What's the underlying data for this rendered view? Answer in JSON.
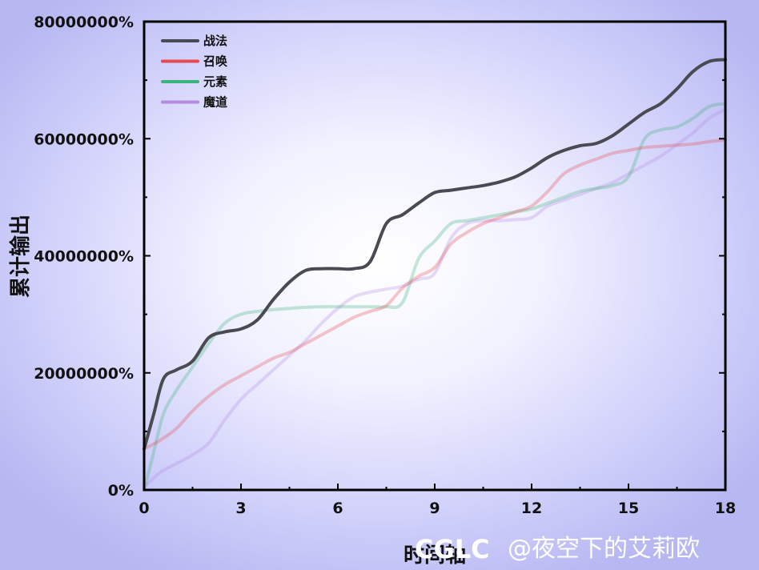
{
  "chart_data": {
    "type": "line",
    "title": "",
    "xlabel": "时间轴",
    "ylabel": "累计输出",
    "xlim": [
      0,
      18
    ],
    "ylim": [
      0,
      80000000
    ],
    "xticks": [
      0,
      3,
      6,
      9,
      12,
      15,
      18
    ],
    "xtick_labels": [
      "0",
      "3",
      "6",
      "9",
      "12",
      "15",
      "18"
    ],
    "yticks": [
      0,
      20000000,
      40000000,
      60000000,
      80000000
    ],
    "ytick_labels": [
      "0%",
      "20000000%",
      "40000000%",
      "60000000%",
      "80000000%"
    ],
    "grid": false,
    "legend_position": "top-left",
    "series": [
      {
        "name": "战法",
        "color": "#4a4a52",
        "opacity": 1,
        "x": [
          0,
          0.3,
          0.6,
          1.0,
          1.5,
          2.0,
          2.5,
          3.0,
          3.5,
          4.0,
          4.5,
          5.0,
          5.5,
          6.0,
          6.5,
          7.0,
          7.5,
          8.0,
          8.5,
          9.0,
          9.5,
          10,
          10.5,
          11,
          11.5,
          12,
          12.5,
          13,
          13.5,
          14,
          14.5,
          15,
          15.5,
          16,
          16.5,
          17,
          17.5,
          18
        ],
        "y": [
          7000000,
          13000000,
          19000000,
          20500000,
          22000000,
          26000000,
          27000000,
          27500000,
          29000000,
          32500000,
          35500000,
          37500000,
          37800000,
          37800000,
          37800000,
          39000000,
          45500000,
          47000000,
          49000000,
          50800000,
          51200000,
          51600000,
          52000000,
          52600000,
          53500000,
          55000000,
          56800000,
          58000000,
          58800000,
          59200000,
          60500000,
          62500000,
          64500000,
          66000000,
          68500000,
          71500000,
          73200000,
          73500000
        ]
      },
      {
        "name": "召唤",
        "color": "#e8484f",
        "opacity": 0.3,
        "x": [
          0,
          0.5,
          1.0,
          1.5,
          2.0,
          2.5,
          3.0,
          3.5,
          4.0,
          4.5,
          5.0,
          5.5,
          6.0,
          6.5,
          7.0,
          7.5,
          8.0,
          8.5,
          9.0,
          9.5,
          10,
          10.5,
          11,
          11.5,
          12,
          12.5,
          13,
          13.5,
          14,
          14.5,
          15,
          15.5,
          16,
          16.5,
          17,
          17.5,
          18
        ],
        "y": [
          7000000,
          8500000,
          10500000,
          13500000,
          16000000,
          18000000,
          19500000,
          21000000,
          22500000,
          23500000,
          25000000,
          26500000,
          28000000,
          29500000,
          30500000,
          31500000,
          34500000,
          36500000,
          38000000,
          42000000,
          44000000,
          45500000,
          46500000,
          47500000,
          48500000,
          51000000,
          54000000,
          55500000,
          56500000,
          57500000,
          58000000,
          58500000,
          58700000,
          58900000,
          59100000,
          59500000,
          59800000
        ]
      },
      {
        "name": "元素",
        "color": "#3cb37a",
        "opacity": 0.3,
        "x": [
          0,
          0.3,
          0.6,
          1.0,
          1.5,
          2.0,
          2.5,
          3.0,
          3.5,
          4.0,
          4.5,
          5.0,
          5.5,
          6.0,
          6.5,
          7.0,
          7.5,
          8.0,
          8.5,
          9.0,
          9.5,
          10,
          10.5,
          11,
          11.5,
          12,
          12.5,
          13,
          13.5,
          14,
          14.5,
          15,
          15.5,
          16,
          16.5,
          17,
          17.5,
          18
        ],
        "y": [
          0,
          6500000,
          13000000,
          17000000,
          21000000,
          25000000,
          28500000,
          30000000,
          30500000,
          30800000,
          31000000,
          31200000,
          31300000,
          31300000,
          31300000,
          31300000,
          31300000,
          32000000,
          39500000,
          42500000,
          45500000,
          46000000,
          46500000,
          47000000,
          47500000,
          48000000,
          49000000,
          50000000,
          51000000,
          51500000,
          52000000,
          53500000,
          60000000,
          61500000,
          62000000,
          63500000,
          65500000,
          66000000
        ]
      },
      {
        "name": "魔道",
        "color": "#b58be0",
        "opacity": 0.3,
        "x": [
          0,
          0.5,
          1.0,
          1.5,
          2.0,
          2.5,
          3.0,
          3.5,
          4.0,
          4.5,
          5.0,
          5.5,
          6.0,
          6.5,
          7.0,
          7.5,
          8.0,
          8.5,
          9.0,
          9.5,
          10,
          10.5,
          11,
          11.5,
          12,
          12.5,
          13,
          13.5,
          14,
          14.5,
          15,
          15.5,
          16,
          16.5,
          17,
          17.5,
          18
        ],
        "y": [
          500000,
          3000000,
          4500000,
          6000000,
          8000000,
          12000000,
          15500000,
          18000000,
          20500000,
          23000000,
          25500000,
          28500000,
          31000000,
          33000000,
          33800000,
          34300000,
          34800000,
          36000000,
          37000000,
          43000000,
          45500000,
          46000000,
          46000000,
          46200000,
          46500000,
          48500000,
          49500000,
          50500000,
          51500000,
          52500000,
          54000000,
          55500000,
          57000000,
          59000000,
          61000000,
          63500000,
          65000000
        ]
      }
    ]
  },
  "watermark": {
    "logo": "CGLC",
    "text": "@夜空下的艾莉欧"
  }
}
